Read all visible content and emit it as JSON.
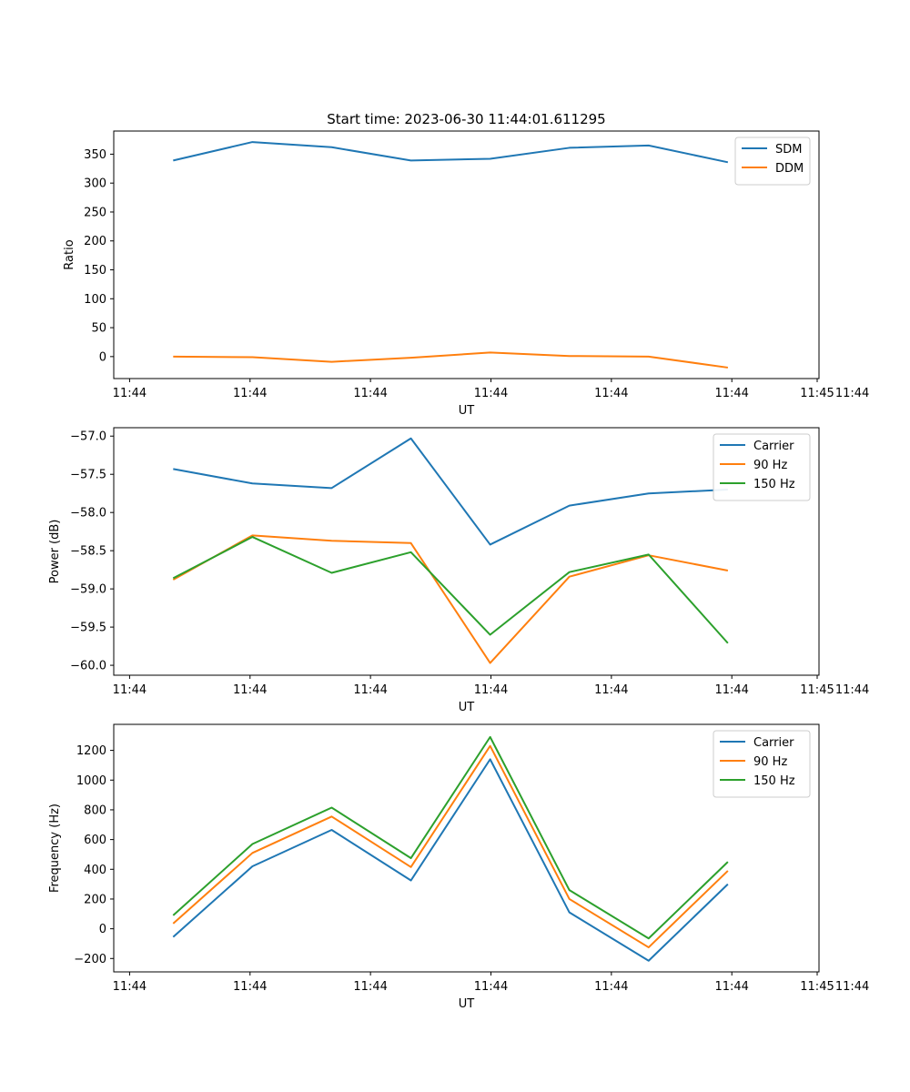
{
  "figure": {
    "title": "Start time: 2023-06-30 11:44:01.611295"
  },
  "colors": {
    "blue": "#1f77b4",
    "orange": "#ff7f0e",
    "green": "#2ca02c"
  },
  "chart_data": [
    {
      "type": "line",
      "title": "Start time: 2023-06-30 11:44:01.611295",
      "xlabel": "UT",
      "ylabel": "Ratio",
      "x": [
        1,
        2,
        3,
        4,
        5,
        6,
        7,
        8
      ],
      "xlim": [
        0.25,
        9.15
      ],
      "xticks": [
        0.45,
        1.97,
        3.49,
        5.01,
        6.53,
        8.05,
        9.57
      ],
      "xtick_labels": [
        "11:44",
        "11:44",
        "11:44",
        "11:44",
        "11:44",
        "11:44",
        "11:44"
      ],
      "extra_xtick": {
        "x": 9.57,
        "label": "11:45"
      },
      "ylim": [
        -38,
        390
      ],
      "yticks": [
        0,
        50,
        100,
        150,
        200,
        250,
        300,
        350
      ],
      "ytick_labels": [
        "0",
        "50",
        "100",
        "150",
        "200",
        "250",
        "300",
        "350"
      ],
      "legend": "top-right",
      "series": [
        {
          "name": "SDM",
          "color": "#1f77b4",
          "values": [
            339,
            371,
            362,
            339,
            342,
            361,
            365,
            336
          ]
        },
        {
          "name": "DDM",
          "color": "#ff7f0e",
          "values": [
            0,
            -1,
            -9,
            -2,
            7,
            1,
            0,
            -19
          ]
        }
      ]
    },
    {
      "type": "line",
      "xlabel": "UT",
      "ylabel": "Power (dB)",
      "x": [
        1,
        2,
        3,
        4,
        5,
        6,
        7,
        8
      ],
      "xlim": [
        0.25,
        9.15
      ],
      "xticks": [
        0.45,
        1.97,
        3.49,
        5.01,
        6.53,
        8.05,
        9.57
      ],
      "xtick_labels": [
        "11:44",
        "11:44",
        "11:44",
        "11:44",
        "11:44",
        "11:44",
        "11:44"
      ],
      "extra_xtick": {
        "x": 9.57,
        "label": "11:45"
      },
      "ylim": [
        -60.13,
        -56.89
      ],
      "yticks": [
        -60.0,
        -59.5,
        -59.0,
        -58.5,
        -58.0,
        -57.5,
        -57.0
      ],
      "ytick_labels": [
        "−60.0",
        "−59.5",
        "−59.0",
        "−58.5",
        "−58.0",
        "−57.5",
        "−57.0"
      ],
      "legend": "top-right",
      "series": [
        {
          "name": "Carrier",
          "color": "#1f77b4",
          "values": [
            -57.43,
            -57.62,
            -57.68,
            -57.03,
            -58.42,
            -57.91,
            -57.75,
            -57.7
          ]
        },
        {
          "name": "90 Hz",
          "color": "#ff7f0e",
          "values": [
            -58.88,
            -58.3,
            -58.37,
            -58.4,
            -59.97,
            -58.84,
            -58.56,
            -58.76
          ]
        },
        {
          "name": "150 Hz",
          "color": "#2ca02c",
          "values": [
            -58.86,
            -58.32,
            -58.79,
            -58.52,
            -59.6,
            -58.78,
            -58.55,
            -59.71
          ]
        }
      ]
    },
    {
      "type": "line",
      "xlabel": "UT",
      "ylabel": "Frequency (Hz)",
      "x": [
        1,
        2,
        3,
        4,
        5,
        6,
        7,
        8
      ],
      "xlim": [
        0.25,
        9.15
      ],
      "xticks": [
        0.45,
        1.97,
        3.49,
        5.01,
        6.53,
        8.05,
        9.57
      ],
      "xtick_labels": [
        "11:44",
        "11:44",
        "11:44",
        "11:44",
        "11:44",
        "11:44",
        "11:44"
      ],
      "extra_xtick": {
        "x": 9.57,
        "label": "11:45"
      },
      "ylim": [
        -290,
        1375
      ],
      "yticks": [
        -200,
        0,
        200,
        400,
        600,
        800,
        1000,
        1200
      ],
      "ytick_labels": [
        "−200",
        "0",
        "200",
        "400",
        "600",
        "800",
        "1000",
        "1200"
      ],
      "legend": "top-right",
      "series": [
        {
          "name": "Carrier",
          "color": "#1f77b4",
          "values": [
            -55,
            420,
            665,
            325,
            1140,
            110,
            -215,
            300
          ]
        },
        {
          "name": "90 Hz",
          "color": "#ff7f0e",
          "values": [
            35,
            510,
            755,
            415,
            1230,
            200,
            -125,
            390
          ]
        },
        {
          "name": "150 Hz",
          "color": "#2ca02c",
          "values": [
            90,
            570,
            815,
            475,
            1290,
            260,
            -65,
            450
          ]
        }
      ]
    }
  ]
}
